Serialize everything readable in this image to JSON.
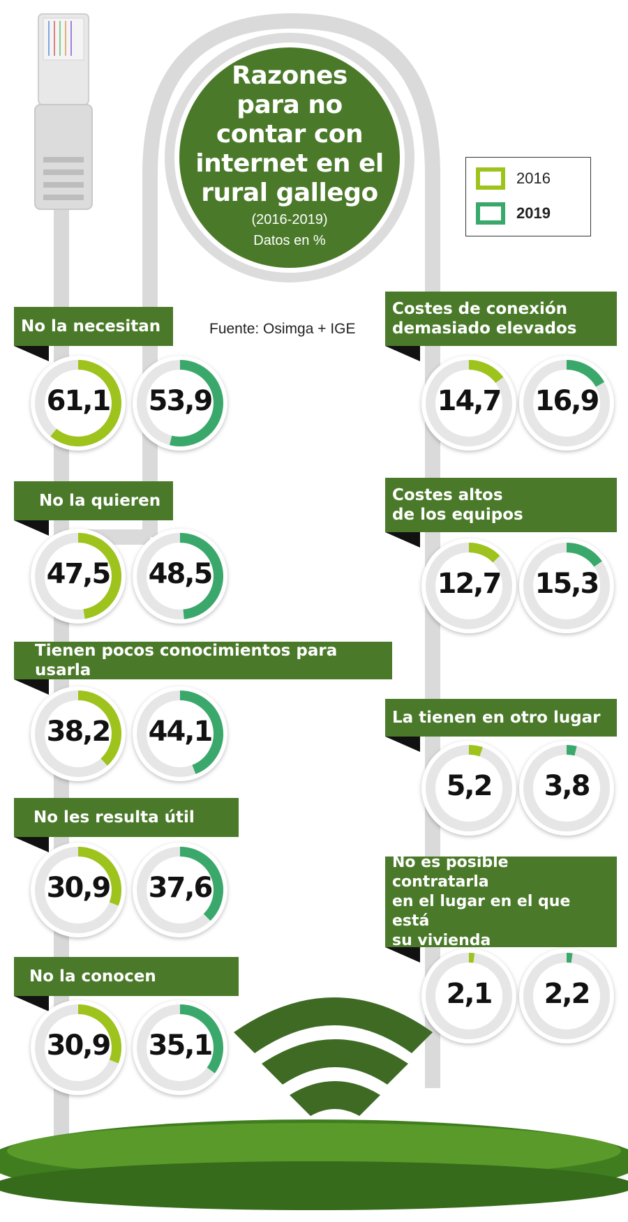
{
  "title": "Razones\npara no\ncontar con\ninternet en el\nrural gallego",
  "subtitle_years": "(2016-2019)",
  "subtitle_units": "Datos en %",
  "source": "Fuente: Osimga + IGE",
  "colors": {
    "banner": "#4a7a29",
    "c2016": "#9dc31c",
    "c2019": "#3aa86b",
    "track": "#e6e6e6",
    "cable": "#dcdcdc"
  },
  "chart_data": {
    "type": "donut",
    "legend": [
      {
        "name": "2016",
        "color": "#9dc31c"
      },
      {
        "name": "2019",
        "color": "#3aa86b"
      }
    ],
    "categories": [
      {
        "label": "No la necesitan",
        "v2016": "61,1",
        "v2019": "53,9",
        "n2016": 61.1,
        "n2019": 53.9
      },
      {
        "label": "No la quieren",
        "v2016": "47,5",
        "v2019": "48,5",
        "n2016": 47.5,
        "n2019": 48.5
      },
      {
        "label": "Tienen pocos conocimientos para usarla",
        "v2016": "38,2",
        "v2019": "44,1",
        "n2016": 38.2,
        "n2019": 44.1
      },
      {
        "label": "No les resulta útil",
        "v2016": "30,9",
        "v2019": "37,6",
        "n2016": 30.9,
        "n2019": 37.6
      },
      {
        "label": "No la conocen",
        "v2016": "30,9",
        "v2019": "35,1",
        "n2016": 30.9,
        "n2019": 35.1
      },
      {
        "label": "Costes de conexión\ndemasiado elevados",
        "v2016": "14,7",
        "v2019": "16,9",
        "n2016": 14.7,
        "n2019": 16.9
      },
      {
        "label": "Costes altos\nde los equipos",
        "v2016": "12,7",
        "v2019": "15,3",
        "n2016": 12.7,
        "n2019": 15.3
      },
      {
        "label": "La tienen en otro lugar",
        "v2016": "5,2",
        "v2019": "3,8",
        "n2016": 5.2,
        "n2019": 3.8
      },
      {
        "label": "No es posible contratarla\nen el lugar en el que está\nsu vivienda",
        "v2016": "2,1",
        "v2019": "2,2",
        "n2016": 2.1,
        "n2019": 2.2
      }
    ]
  }
}
